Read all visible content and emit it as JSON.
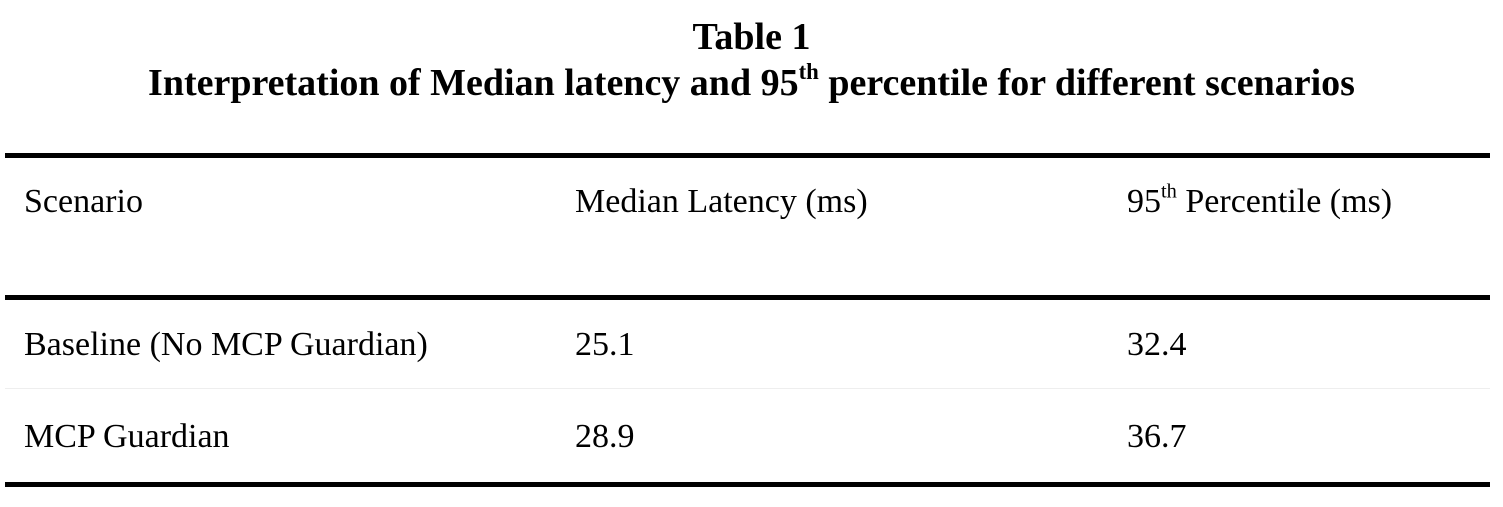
{
  "caption": {
    "label": "Table 1",
    "title": [
      "Interpretation of Median latency and 95",
      "th",
      " percentile for different scenarios"
    ]
  },
  "table": {
    "header": [
      [
        "Scenario"
      ],
      [
        "Median Latency (ms)"
      ],
      [
        "95",
        "th",
        " Percentile (ms)"
      ]
    ],
    "rows": [
      [
        "Baseline (No MCP Guardian)",
        25.1,
        32.4
      ],
      [
        "MCP Guardian",
        28.9,
        36.7
      ]
    ]
  }
}
